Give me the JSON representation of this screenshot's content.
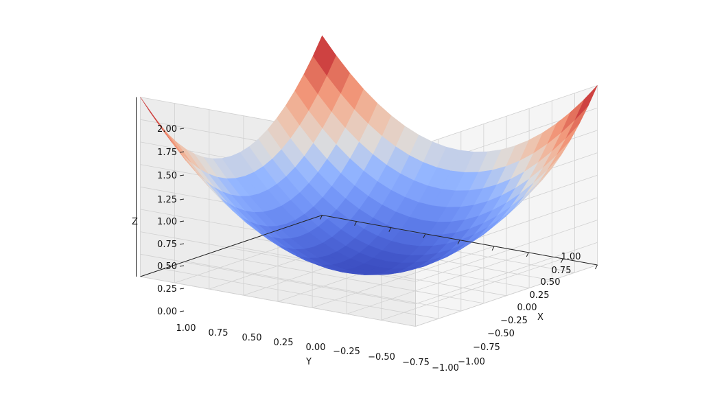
{
  "chart_data": {
    "type": "surface",
    "function": "z = x^2 + y^2",
    "title": "",
    "xlabel": "X",
    "ylabel": "Y",
    "zlabel": "Z",
    "xlim": [
      -1.0,
      1.0
    ],
    "ylim": [
      -1.0,
      1.0
    ],
    "zlim": [
      0.0,
      2.0
    ],
    "x_ticks": [
      "−1.00",
      "−0.75",
      "−0.50",
      "−0.25",
      "0.00",
      "0.25",
      "0.50",
      "0.75",
      "1.00"
    ],
    "y_ticks": [
      "1.00",
      "0.75",
      "0.50",
      "0.25",
      "0.00",
      "−0.25",
      "−0.50",
      "−0.75",
      "−1.00"
    ],
    "z_ticks": [
      "0.00",
      "0.25",
      "0.50",
      "0.75",
      "1.00",
      "1.25",
      "1.50",
      "1.75",
      "2.00"
    ],
    "colormap": "coolwarm",
    "colormap_low": "#3b4cc0",
    "colormap_mid": "#dddddd",
    "colormap_high": "#b40426",
    "grid": true,
    "pane_color": "#f2f2f2",
    "grid_color": "#d0d0d0"
  }
}
